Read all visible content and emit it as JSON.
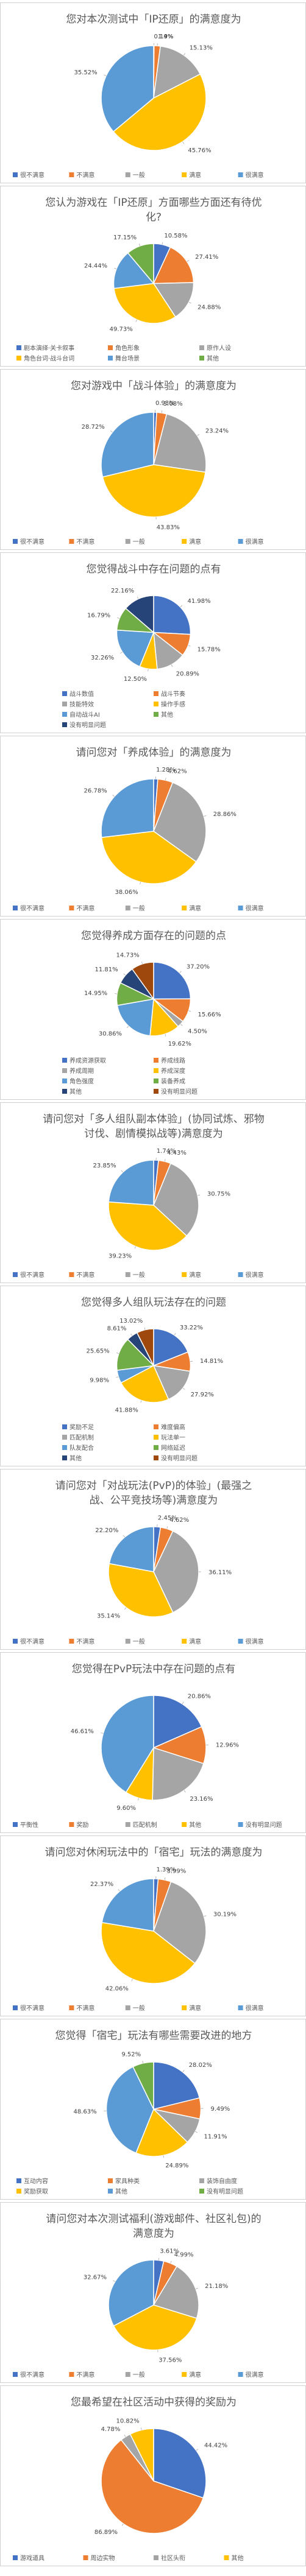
{
  "colors": {
    "blue": "#4472C4",
    "orange": "#ED7D31",
    "gray": "#A5A5A5",
    "yellow": "#FFC000",
    "lightblue": "#5B9BD5",
    "green": "#70AD47",
    "darkblue": "#264478",
    "brown": "#9E480E"
  },
  "chart_data": [
    {
      "type": "pie",
      "title": "您对本次测试中「IP还原」的满意度为",
      "categories": [
        "很不满意",
        "不满意",
        "一般",
        "满意",
        "很满意"
      ],
      "values": [
        0.14,
        1.9,
        15.13,
        45.76,
        35.52
      ],
      "labels": [
        "0.14%",
        "1.9%",
        "15.13%",
        "45.76%",
        "35.52%"
      ],
      "colors": [
        "blue",
        "orange",
        "gray",
        "yellow",
        "lightblue"
      ],
      "legend": [
        "很不满意",
        "不满意",
        "一般",
        "满意",
        "很满意"
      ],
      "legend_position": "bottom"
    },
    {
      "type": "pie",
      "title": "您认为游戏在「IP还原」方面哪些方面还有待优化?",
      "categories": [
        "剧本演绎·关卡叙事",
        "角色形象",
        "原作人设",
        "角色台词·战斗台词",
        "舞台场景",
        "其他"
      ],
      "values": [
        10.58,
        27.41,
        24.88,
        49.73,
        24.44,
        17.15
      ],
      "labels": [
        "10.58%",
        "27.41%",
        "24.88%",
        "49.73%",
        "24.44%",
        "17.15%"
      ],
      "colors": [
        "blue",
        "orange",
        "gray",
        "yellow",
        "lightblue",
        "green"
      ],
      "legend": [
        "剧本演绎·关卡叙事",
        "角色形象",
        "原作人设",
        "角色台词·战斗台词",
        "舞台场景",
        "其他"
      ],
      "legend_position": "bottom"
    },
    {
      "type": "pie",
      "title": "您对游戏中「战斗体验」的满意度为",
      "categories": [
        "很不满意",
        "不满意",
        "一般",
        "满意",
        "很满意"
      ],
      "values": [
        0.93,
        3.08,
        23.24,
        43.83,
        28.72
      ],
      "labels": [
        "0.93%",
        "3.08%",
        "23.24%",
        "43.83%",
        "28.72%"
      ],
      "colors": [
        "blue",
        "orange",
        "gray",
        "yellow",
        "lightblue"
      ],
      "legend": [
        "很不满意",
        "不满意",
        "一般",
        "满意",
        "很满意"
      ],
      "legend_position": "bottom"
    },
    {
      "type": "pie",
      "title": "您觉得战斗中存在问题的点有",
      "categories": [
        "战斗数值",
        "战斗节奏",
        "技能特效",
        "操作手感",
        "自动战斗AI",
        "其他",
        "没有明显问题"
      ],
      "values": [
        41.98,
        15.78,
        20.89,
        12.5,
        32.26,
        16.79,
        22.16
      ],
      "labels": [
        "41.98%",
        "15.78%",
        "20.89%",
        "12.50%",
        "32.26%",
        "16.79%",
        "22.16%"
      ],
      "colors": [
        "blue",
        "orange",
        "gray",
        "yellow",
        "lightblue",
        "green",
        "darkblue"
      ],
      "legend": [
        "战斗数值",
        "战斗节奏",
        "技能特效",
        "操作手感",
        "自动战斗AI",
        "其他",
        "没有明显问题"
      ],
      "legend_position": "bottom"
    },
    {
      "type": "pie",
      "title": "请问您对「养成体验」的满意度为",
      "categories": [
        "很不满意",
        "不满意",
        "一般",
        "满意",
        "很满意"
      ],
      "values": [
        1.28,
        4.62,
        28.86,
        38.06,
        26.78
      ],
      "labels": [
        "1.28%",
        "4.62%",
        "28.86%",
        "38.06%",
        "26.78%"
      ],
      "colors": [
        "blue",
        "orange",
        "gray",
        "yellow",
        "lightblue"
      ],
      "legend": [
        "很不满意",
        "不满意",
        "一般",
        "满意",
        "很满意"
      ],
      "legend_position": "bottom"
    },
    {
      "type": "pie",
      "title": "您觉得养成方面存在的问题的点",
      "categories": [
        "养成资源获取",
        "养成线路",
        "养成周期",
        "养成深度",
        "角色强度",
        "装备养成",
        "其他",
        "没有明显问题"
      ],
      "values": [
        37.2,
        15.66,
        4.5,
        19.62,
        30.86,
        14.95,
        11.81,
        14.73
      ],
      "labels": [
        "37.20%",
        "15.66%",
        "4.50%",
        "19.62%",
        "30.86%",
        "14.95%",
        "11.81%",
        "14.73%"
      ],
      "colors": [
        "blue",
        "orange",
        "gray",
        "yellow",
        "lightblue",
        "green",
        "darkblue",
        "brown"
      ],
      "legend": [
        "养成资源获取",
        "养成线路",
        "养成周期",
        "养成深度",
        "角色强度",
        "装备养成",
        "其他",
        "没有明显问题"
      ],
      "legend_position": "bottom"
    },
    {
      "type": "pie",
      "title": "请问您对「多人组队副本体验」(协同试炼、邪物讨伐、剧情模拟战等)满意度为",
      "categories": [
        "很不满意",
        "不满意",
        "一般",
        "满意",
        "很满意"
      ],
      "values": [
        1.74,
        4.43,
        30.75,
        39.23,
        23.85
      ],
      "labels": [
        "1.74%",
        "4.43%",
        "30.75%",
        "39.23%",
        "23.85%"
      ],
      "colors": [
        "blue",
        "orange",
        "gray",
        "yellow",
        "lightblue"
      ],
      "legend": [
        "很不满意",
        "不满意",
        "一般",
        "满意",
        "很满意"
      ],
      "legend_position": "bottom"
    },
    {
      "type": "pie",
      "title": "您觉得多人组队玩法存在的问题",
      "categories": [
        "奖励不足",
        "难度偏高",
        "匹配机制",
        "玩法单一",
        "队友配合",
        "网络延迟",
        "其他",
        "没有明显问题"
      ],
      "values": [
        33.22,
        14.81,
        27.92,
        41.88,
        9.98,
        25.65,
        8.61,
        13.02
      ],
      "labels": [
        "33.22%",
        "14.81%",
        "27.92%",
        "41.88%",
        "9.98%",
        "25.65%",
        "8.61%",
        "13.02%"
      ],
      "colors": [
        "blue",
        "orange",
        "gray",
        "yellow",
        "lightblue",
        "green",
        "darkblue",
        "brown"
      ],
      "legend": [
        "奖励不足",
        "难度偏高",
        "匹配机制",
        "玩法单一",
        "队友配合",
        "网络延迟",
        "其他",
        "没有明显问题"
      ],
      "legend_position": "bottom"
    },
    {
      "type": "pie",
      "title": "请问您对「对战玩法(PvP)的体验」(最强之战、公平竞技场等)满意度为",
      "categories": [
        "很不满意",
        "不满意",
        "一般",
        "满意",
        "很满意"
      ],
      "values": [
        2.45,
        4.62,
        36.11,
        35.14,
        22.2
      ],
      "labels": [
        "2.45%",
        "4.62%",
        "36.11%",
        "35.14%",
        "22.20%"
      ],
      "colors": [
        "blue",
        "orange",
        "gray",
        "yellow",
        "lightblue"
      ],
      "legend": [
        "很不满意",
        "不满意",
        "一般",
        "满意",
        "很满意"
      ],
      "legend_position": "bottom"
    },
    {
      "type": "pie",
      "title": "您觉得在PvP玩法中存在问题的点有",
      "categories": [
        "平衡性",
        "奖励",
        "匹配机制",
        "其他",
        "没有明显问题"
      ],
      "values": [
        20.86,
        12.96,
        23.16,
        9.6,
        46.61
      ],
      "labels": [
        "20.86%",
        "12.96%",
        "23.16%",
        "9.60%",
        "46.61%"
      ],
      "colors": [
        "blue",
        "orange",
        "gray",
        "yellow",
        "lightblue"
      ],
      "legend": [
        "平衡性",
        "奖励",
        "匹配机制",
        "其他",
        "没有明显问题"
      ],
      "legend_position": "bottom"
    },
    {
      "type": "pie",
      "title": "请问您对休闲玩法中的「宿宅」玩法的满意度为",
      "categories": [
        "很不满意",
        "不满意",
        "一般",
        "满意",
        "很满意"
      ],
      "values": [
        1.39,
        3.99,
        30.19,
        42.06,
        22.37
      ],
      "labels": [
        "1.39%",
        "3.99%",
        "30.19%",
        "42.06%",
        "22.37%"
      ],
      "colors": [
        "blue",
        "orange",
        "gray",
        "yellow",
        "lightblue"
      ],
      "legend": [
        "很不满意",
        "不满意",
        "一般",
        "满意",
        "很满意"
      ],
      "legend_position": "bottom"
    },
    {
      "type": "pie",
      "title": "您觉得「宿宅」玩法有哪些需要改进的地方",
      "categories": [
        "互动内容",
        "家具种类",
        "装饰自由度",
        "奖励获取",
        "其他",
        "没有明显问题"
      ],
      "values": [
        28.02,
        9.49,
        11.91,
        24.89,
        48.63,
        9.52
      ],
      "labels": [
        "28.02%",
        "9.49%",
        "11.91%",
        "24.89%",
        "48.63%",
        "9.52%"
      ],
      "colors": [
        "blue",
        "orange",
        "gray",
        "yellow",
        "lightblue",
        "green"
      ],
      "legend": [
        "互动内容",
        "家具种类",
        "装饰自由度",
        "奖励获取",
        "其他",
        "没有明显问题"
      ],
      "legend_position": "bottom"
    },
    {
      "type": "pie",
      "title": "请问您对本次测试福利(游戏邮件、社区礼包)的满意度为",
      "categories": [
        "很不满意",
        "不满意",
        "一般",
        "满意",
        "很满意"
      ],
      "values": [
        3.61,
        4.99,
        21.18,
        37.56,
        32.67
      ],
      "labels": [
        "3.61%",
        "4.99%",
        "21.18%",
        "37.56%",
        "32.67%"
      ],
      "colors": [
        "blue",
        "orange",
        "gray",
        "yellow",
        "lightblue"
      ],
      "legend": [
        "很不满意",
        "不满意",
        "一般",
        "满意",
        "很满意"
      ],
      "legend_position": "bottom"
    },
    {
      "type": "pie",
      "title": "您最希望在社区活动中获得的奖励为",
      "categories": [
        "游戏道具",
        "周边实物",
        "社区头衔",
        "其他"
      ],
      "values": [
        44.42,
        86.89,
        4.78,
        10.82
      ],
      "labels": [
        "44.42%",
        "86.89%",
        "4.78%",
        "10.82%"
      ],
      "colors": [
        "blue",
        "orange",
        "gray",
        "yellow"
      ],
      "legend": [
        "游戏道具",
        "周边实物",
        "社区头衔",
        "其他"
      ],
      "legend_position": "bottom"
    }
  ]
}
